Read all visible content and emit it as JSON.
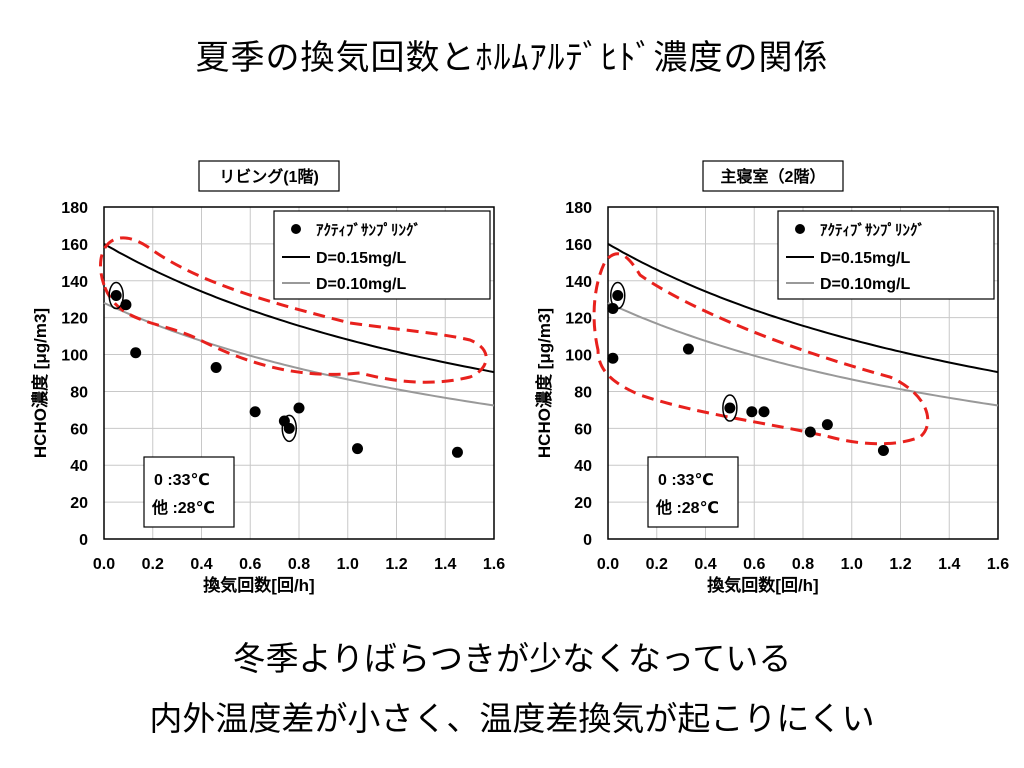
{
  "slide": {
    "title": "夏季の換気回数とﾎﾙﾑｱﾙﾃﾞﾋﾄﾞ濃度の関係",
    "captions": [
      "冬季よりばらつきが少なくなっている",
      "内外温度差が小さく、温度差換気が起こりにくい"
    ]
  },
  "colors": {
    "points": "#000000",
    "d015": "#000000",
    "d010": "#999999",
    "dashed_region": "#e8211d",
    "plot_bg": "#ffffff",
    "grid": "#c8c8c8"
  },
  "chart_data": [
    {
      "type": "scatter",
      "title": "リビング(1階)",
      "xlabel": "換気回数[回/h]",
      "ylabel": "HCHO濃度 [μg/m3]",
      "xlim": [
        0,
        1.6
      ],
      "ylim": [
        0,
        180
      ],
      "xticks": [
        "0.0",
        "0.2",
        "0.4",
        "0.6",
        "0.8",
        "1.0",
        "1.2",
        "1.4",
        "1.6"
      ],
      "yticks": [
        "0",
        "20",
        "40",
        "60",
        "80",
        "100",
        "120",
        "140",
        "160",
        "180"
      ],
      "grid": true,
      "legend_position": "top-right",
      "series": [
        {
          "name": "ｱｸﾃｨﾌﾞｻﾝﾌﾟﾘﾝｸﾞ",
          "kind": "points",
          "x": [
            0.05,
            0.09,
            0.13,
            0.46,
            0.62,
            0.74,
            0.76,
            0.8,
            1.04,
            1.45
          ],
          "y": [
            132,
            127,
            101,
            93,
            69,
            64,
            60,
            71,
            49,
            47
          ]
        },
        {
          "name": "D=0.15mg/L",
          "kind": "curve",
          "param": 0.15
        },
        {
          "name": "D=0.10mg/L",
          "kind": "curve",
          "param": 0.1
        }
      ],
      "marked_33C": [
        [
          0.05,
          132
        ],
        [
          0.76,
          60
        ]
      ],
      "inset": [
        "0 :33℃",
        "他 :28℃"
      ]
    },
    {
      "type": "scatter",
      "title": "主寝室（2階）",
      "xlabel": "換気回数[回/h]",
      "ylabel": "HCHO濃度 [μg/m3]",
      "xlim": [
        0,
        1.6
      ],
      "ylim": [
        0,
        180
      ],
      "xticks": [
        "0.0",
        "0.2",
        "0.4",
        "0.6",
        "0.8",
        "1.0",
        "1.2",
        "1.4",
        "1.6"
      ],
      "yticks": [
        "0",
        "20",
        "40",
        "60",
        "80",
        "100",
        "120",
        "140",
        "160",
        "180"
      ],
      "grid": true,
      "legend_position": "top-right",
      "series": [
        {
          "name": "ｱｸﾃｨﾌﾞｻﾝﾌﾟﾘﾝｸﾞ",
          "kind": "points",
          "x": [
            0.02,
            0.04,
            0.02,
            0.33,
            0.5,
            0.59,
            0.64,
            0.83,
            0.9,
            1.13
          ],
          "y": [
            125,
            132,
            98,
            103,
            71,
            69,
            69,
            58,
            62,
            48
          ]
        },
        {
          "name": "D=0.15mg/L",
          "kind": "curve",
          "param": 0.15
        },
        {
          "name": "D=0.10mg/L",
          "kind": "curve",
          "param": 0.1
        }
      ],
      "marked_33C": [
        [
          0.04,
          132
        ],
        [
          0.5,
          71
        ]
      ],
      "inset": [
        "0 :33℃",
        "他 :28℃"
      ]
    }
  ]
}
